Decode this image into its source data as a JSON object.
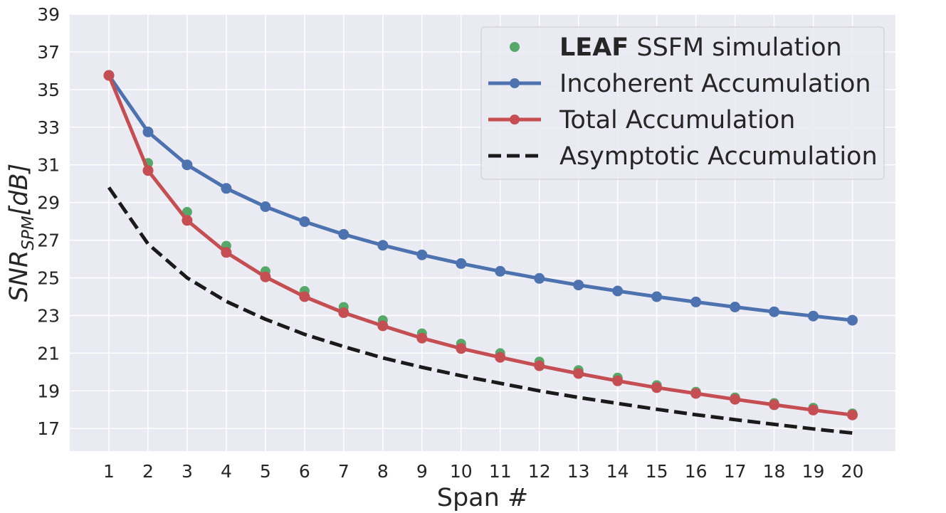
{
  "chart_data": {
    "type": "line",
    "xlabel": "Span #",
    "ylabel": "SNR",
    "ylabel_sub": "SPM",
    "ylabel_unit": "[dB]",
    "xlim": [
      0,
      21.1
    ],
    "ylim": [
      15.8,
      39
    ],
    "x": [
      1,
      2,
      3,
      4,
      5,
      6,
      7,
      8,
      9,
      10,
      11,
      12,
      13,
      14,
      15,
      16,
      17,
      18,
      19,
      20
    ],
    "x_tick_labels": [
      "1",
      "2",
      "3",
      "4",
      "5",
      "6",
      "7",
      "8",
      "9",
      "10",
      "11",
      "12",
      "13",
      "14",
      "15",
      "16",
      "17",
      "18",
      "19",
      "20"
    ],
    "y_ticks": [
      17,
      19,
      21,
      23,
      25,
      27,
      29,
      31,
      33,
      35,
      37,
      39
    ],
    "y_tick_labels": [
      "17",
      "19",
      "21",
      "23",
      "25",
      "27",
      "29",
      "31",
      "33",
      "35",
      "37",
      "39"
    ],
    "grid": true,
    "legend_position": "top-right",
    "series": [
      {
        "name": "SSFM simulation",
        "name_bold": "LEAF",
        "style": "markers",
        "color": "#55a868",
        "values": [
          35.75,
          31.1,
          28.5,
          26.7,
          25.35,
          24.3,
          23.45,
          22.75,
          22.05,
          21.5,
          21.0,
          20.55,
          20.1,
          19.7,
          19.3,
          18.95,
          18.65,
          18.35,
          18.1,
          17.8
        ]
      },
      {
        "name": "Incoherent Accumulation",
        "style": "line-markers",
        "color": "#4c72b0",
        "values": [
          35.75,
          32.75,
          31.0,
          29.75,
          28.78,
          27.98,
          27.31,
          26.73,
          26.22,
          25.76,
          25.35,
          24.97,
          24.62,
          24.3,
          24.0,
          23.72,
          23.45,
          23.2,
          22.97,
          22.75
        ]
      },
      {
        "name": "Total Accumulation",
        "style": "line-markers",
        "color": "#c44e52",
        "values": [
          35.75,
          30.7,
          28.05,
          26.35,
          25.05,
          24.0,
          23.15,
          22.45,
          21.8,
          21.25,
          20.78,
          20.33,
          19.92,
          19.53,
          19.17,
          18.86,
          18.55,
          18.26,
          17.98,
          17.72
        ]
      },
      {
        "name": "Asymptotic Accumulation",
        "style": "dashed",
        "color": "#1a1a1a",
        "values": [
          29.8,
          26.8,
          25.0,
          23.75,
          22.8,
          22.0,
          21.35,
          20.75,
          20.25,
          19.8,
          19.4,
          19.0,
          18.65,
          18.33,
          18.02,
          17.73,
          17.47,
          17.22,
          16.98,
          16.76
        ]
      }
    ]
  }
}
